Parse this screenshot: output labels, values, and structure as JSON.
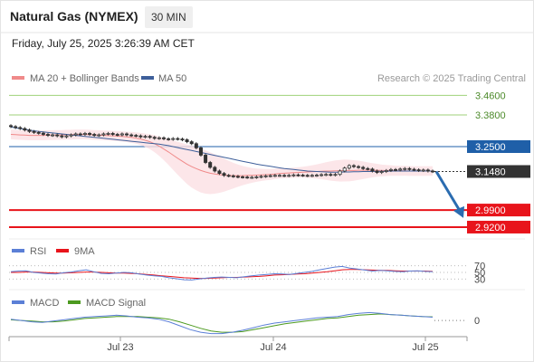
{
  "header": {
    "title": "Natural Gas (NYMEX)",
    "timeframe": "30 MIN",
    "datetime": "Friday, July 25, 2025 3:26:39 AM CET"
  },
  "legend": {
    "ma20_label": "MA 20 + Bollinger Bands",
    "ma50_label": "MA 50",
    "credit": "Research © 2025 Trading Central"
  },
  "colors": {
    "ma20": "#f08a8a",
    "ma50": "#3e5f9a",
    "band_fill": "#fbe0e3",
    "resistance": "#9fd27a",
    "pivot": "#1f5fa8",
    "support": "#e8141b",
    "current": "#333333",
    "rsi": "#5b7fd6",
    "rsi_ma": "#e8141b",
    "macd": "#5b7fd6",
    "macd_signal": "#4c9a1f",
    "arrow": "#2b6cb0"
  },
  "chart_data": [
    {
      "type": "line",
      "name": "price",
      "subtype": "candlestick",
      "x_ticks": [
        "Jul 23",
        "Jul 24",
        "Jul 25"
      ],
      "ylim": [
        2.905,
        3.48
      ],
      "levels": [
        {
          "value": 3.46,
          "label": "3.4600",
          "kind": "resistance"
        },
        {
          "value": 3.38,
          "label": "3.3800",
          "kind": "resistance"
        },
        {
          "value": 3.25,
          "label": "3.2500",
          "kind": "pivot"
        },
        {
          "value": 3.148,
          "label": "3.1480",
          "kind": "current"
        },
        {
          "value": 2.99,
          "label": "2.9900",
          "kind": "support"
        },
        {
          "value": 2.92,
          "label": "2.9200",
          "kind": "support"
        }
      ],
      "close_series": [
        3.332,
        3.328,
        3.324,
        3.318,
        3.312,
        3.308,
        3.305,
        3.3,
        3.296,
        3.298,
        3.294,
        3.29,
        3.294,
        3.298,
        3.302,
        3.3,
        3.304,
        3.3,
        3.296,
        3.298,
        3.302,
        3.304,
        3.3,
        3.298,
        3.302,
        3.298,
        3.296,
        3.294,
        3.29,
        3.292,
        3.288,
        3.284,
        3.286,
        3.282,
        3.28,
        3.283,
        3.281,
        3.278,
        3.27,
        3.262,
        3.245,
        3.215,
        3.185,
        3.165,
        3.15,
        3.14,
        3.132,
        3.13,
        3.128,
        3.126,
        3.125,
        3.124,
        3.124,
        3.126,
        3.128,
        3.13,
        3.131,
        3.132,
        3.132,
        3.131,
        3.132,
        3.134,
        3.133,
        3.132,
        3.131,
        3.132,
        3.133,
        3.135,
        3.136,
        3.134,
        3.136,
        3.15,
        3.162,
        3.172,
        3.168,
        3.165,
        3.16,
        3.158,
        3.15,
        3.144,
        3.148,
        3.152,
        3.156,
        3.154,
        3.158,
        3.16,
        3.157,
        3.155,
        3.152,
        3.154,
        3.15,
        3.148
      ],
      "ma20_series": [
        3.3,
        3.299,
        3.298,
        3.297,
        3.296,
        3.296,
        3.296,
        3.296,
        3.297,
        3.297,
        3.298,
        3.298,
        3.299,
        3.299,
        3.3,
        3.3,
        3.3,
        3.299,
        3.298,
        3.297,
        3.296,
        3.295,
        3.294,
        3.293,
        3.292,
        3.29,
        3.288,
        3.285,
        3.281,
        3.276,
        3.27,
        3.262,
        3.252,
        3.24,
        3.228,
        3.215,
        3.202,
        3.19,
        3.178,
        3.168,
        3.16,
        3.152,
        3.146,
        3.141,
        3.138,
        3.135,
        3.133,
        3.132,
        3.131,
        3.131,
        3.131,
        3.132,
        3.132,
        3.133,
        3.134,
        3.135,
        3.136,
        3.138,
        3.14,
        3.141,
        3.142,
        3.143,
        3.144,
        3.145,
        3.146,
        3.147,
        3.148,
        3.149,
        3.15,
        3.15,
        3.151,
        3.151,
        3.152,
        3.152,
        3.152,
        3.153,
        3.153,
        3.153,
        3.153,
        3.153,
        3.152,
        3.152,
        3.152,
        3.151,
        3.151,
        3.151,
        3.15,
        3.15,
        3.15,
        3.15,
        3.15,
        3.15
      ],
      "ma50_series": [
        3.33,
        3.327,
        3.324,
        3.321,
        3.318,
        3.315,
        3.312,
        3.31,
        3.308,
        3.306,
        3.304,
        3.302,
        3.3,
        3.298,
        3.296,
        3.294,
        3.292,
        3.29,
        3.288,
        3.286,
        3.284,
        3.282,
        3.28,
        3.278,
        3.276,
        3.274,
        3.272,
        3.27,
        3.268,
        3.266,
        3.264,
        3.262,
        3.26,
        3.257,
        3.254,
        3.25,
        3.246,
        3.242,
        3.238,
        3.234,
        3.23,
        3.226,
        3.222,
        3.218,
        3.214,
        3.21,
        3.206,
        3.202,
        3.198,
        3.194,
        3.19,
        3.186,
        3.182,
        3.178,
        3.175,
        3.172,
        3.169,
        3.166,
        3.163,
        3.16,
        3.158,
        3.156,
        3.154,
        3.152,
        3.15,
        3.149,
        3.148,
        3.147,
        3.146,
        3.145,
        3.145,
        3.145,
        3.146,
        3.146,
        3.147,
        3.147,
        3.148,
        3.148,
        3.148,
        3.149,
        3.149,
        3.149,
        3.15,
        3.15,
        3.15,
        3.15,
        3.15,
        3.15,
        3.15,
        3.15,
        3.15,
        3.15
      ],
      "forecast_arrow": {
        "from": 3.148,
        "to": 2.965
      }
    },
    {
      "type": "line",
      "name": "rsi",
      "legend": [
        "RSI",
        "9MA"
      ],
      "ylim": [
        20,
        80
      ],
      "levels": [
        {
          "value": 70,
          "label": "70"
        },
        {
          "value": 50,
          "label": "50"
        },
        {
          "value": 30,
          "label": "30"
        }
      ],
      "series": [
        {
          "name": "RSI",
          "values": [
            52,
            54,
            55,
            50,
            48,
            46,
            45,
            49,
            51,
            55,
            58,
            52,
            47,
            46,
            48,
            50,
            49,
            45,
            42,
            40,
            38,
            34,
            31,
            28,
            27,
            30,
            33,
            35,
            36,
            35,
            34,
            37,
            40,
            42,
            44,
            46,
            45,
            44,
            47,
            50,
            53,
            58,
            62,
            66,
            68,
            63,
            60,
            57,
            54,
            56,
            55,
            53,
            52,
            54,
            55,
            53,
            52
          ]
        },
        {
          "name": "9MA",
          "values": [
            50,
            50,
            51,
            51,
            50,
            49,
            48,
            48,
            49,
            50,
            51,
            51,
            50,
            49,
            48,
            48,
            47,
            46,
            44,
            42,
            40,
            38,
            36,
            34,
            33,
            32,
            32,
            33,
            34,
            35,
            35,
            36,
            37,
            38,
            40,
            42,
            43,
            44,
            45,
            46,
            48,
            50,
            52,
            55,
            58,
            59,
            59,
            58,
            57,
            56,
            56,
            55,
            54,
            54,
            54,
            54,
            53
          ]
        }
      ]
    },
    {
      "type": "line",
      "name": "macd",
      "legend": [
        "MACD",
        "MACD Signal"
      ],
      "ylim": [
        -2.2,
        1.4
      ],
      "levels": [
        {
          "value": 0,
          "label": "0"
        }
      ],
      "series": [
        {
          "name": "MACD",
          "values": [
            0.2,
            0.0,
            -0.2,
            -0.3,
            -0.1,
            0.1,
            0.3,
            0.5,
            0.6,
            0.7,
            0.8,
            0.7,
            0.5,
            0.4,
            0.2,
            -0.2,
            -0.8,
            -1.4,
            -1.8,
            -2.0,
            -2.0,
            -1.8,
            -1.5,
            -1.1,
            -0.7,
            -0.4,
            -0.2,
            0.0,
            0.2,
            0.4,
            0.5,
            0.6,
            0.9,
            1.1,
            1.2,
            1.1,
            0.9,
            0.8,
            0.7,
            0.6,
            0.5
          ]
        },
        {
          "name": "MACD Signal",
          "values": [
            0.1,
            0.0,
            -0.1,
            -0.2,
            -0.2,
            -0.1,
            0.1,
            0.3,
            0.4,
            0.5,
            0.6,
            0.6,
            0.6,
            0.5,
            0.4,
            0.2,
            -0.2,
            -0.7,
            -1.2,
            -1.6,
            -1.8,
            -1.8,
            -1.7,
            -1.4,
            -1.1,
            -0.8,
            -0.5,
            -0.3,
            -0.1,
            0.1,
            0.3,
            0.4,
            0.6,
            0.8,
            0.9,
            1.0,
            0.9,
            0.8,
            0.7,
            0.6,
            0.55
          ]
        }
      ]
    }
  ]
}
